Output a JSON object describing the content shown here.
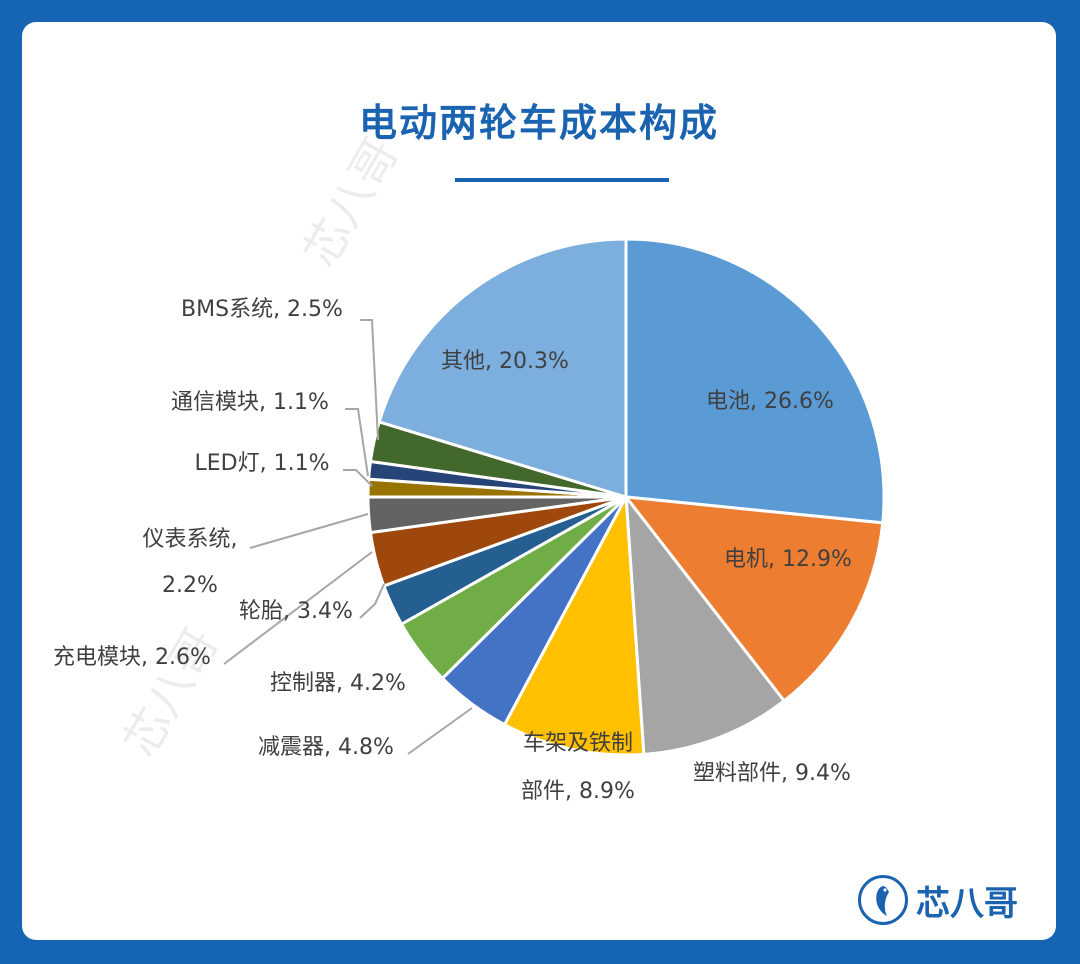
{
  "title": "电动两轮车成本构成",
  "brand": "芯八哥",
  "watermark": "芯八哥",
  "colors": {
    "background": "#1565b4",
    "accent": "#1a63b0"
  },
  "chart_data": {
    "type": "pie",
    "title": "电动两轮车成本构成",
    "unit": "%",
    "slices": [
      {
        "label": "电池",
        "value": 26.6,
        "color": "#5b9bd5"
      },
      {
        "label": "电机",
        "value": 12.9,
        "color": "#ed7d31"
      },
      {
        "label": "塑料部件",
        "value": 9.4,
        "color": "#a5a5a5"
      },
      {
        "label": "车架及铁制部件",
        "value": 8.9,
        "color": "#ffc000"
      },
      {
        "label": "减震器",
        "value": 4.8,
        "color": "#4472c4"
      },
      {
        "label": "控制器",
        "value": 4.2,
        "color": "#70ad47"
      },
      {
        "label": "充电模块",
        "value": 2.6,
        "color": "#255e91"
      },
      {
        "label": "轮胎",
        "value": 3.4,
        "color": "#9e480e"
      },
      {
        "label": "仪表系统",
        "value": 2.2,
        "color": "#636363"
      },
      {
        "label": "LED灯",
        "value": 1.1,
        "color": "#997300"
      },
      {
        "label": "通信模块",
        "value": 1.1,
        "color": "#264478"
      },
      {
        "label": "BMS系统",
        "value": 2.5,
        "color": "#43682b"
      },
      {
        "label": "其他",
        "value": 20.3,
        "color": "#7cafdd"
      }
    ],
    "data_labels": [
      "电池, 26.6%",
      "电机, 12.9%",
      "塑料部件, 9.4%",
      [
        "车架及铁制",
        "部件, 8.9%"
      ],
      "减震器, 4.8%",
      "控制器, 4.2%",
      "充电模块, 2.6%",
      "轮胎, 3.4%",
      [
        "仪表系统,",
        "2.2%"
      ],
      "LED灯, 1.1%",
      "通信模块, 1.1%",
      "BMS系统, 2.5%",
      "其他, 20.3%"
    ]
  }
}
